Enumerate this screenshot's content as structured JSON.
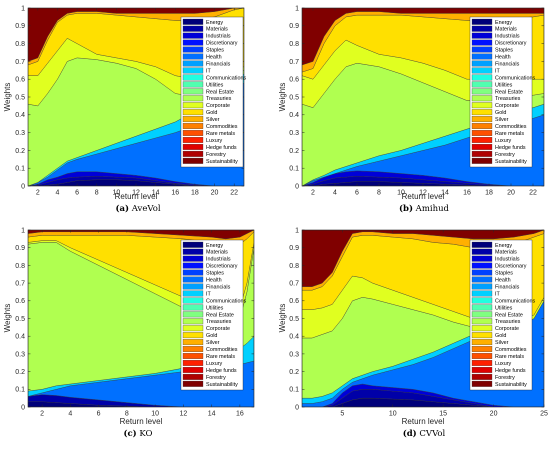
{
  "series_names": [
    "Energy",
    "Materials",
    "Industrials",
    "Discretionary",
    "Staples",
    "Health",
    "Financials",
    "IT",
    "Communications",
    "Utilities",
    "Real Estate",
    "Treasuries",
    "Corporate",
    "Gold",
    "Silver",
    "Commodities",
    "Rare metals",
    "Luxury",
    "Hedge funds",
    "Forestry",
    "Sustainability"
  ],
  "colors": [
    "#00007a",
    "#0000a8",
    "#0000d8",
    "#0010ff",
    "#0040ff",
    "#0070ff",
    "#00a0ff",
    "#00d0ff",
    "#20ffe0",
    "#50ffb0",
    "#80ff80",
    "#b0ff50",
    "#e0ff20",
    "#ffe000",
    "#ffb000",
    "#ff8000",
    "#ff5000",
    "#ff2000",
    "#e00000",
    "#b00000",
    "#800000"
  ],
  "chart_data": [
    {
      "type": "area",
      "caption_letter": "(a)",
      "caption_text": "AveVol",
      "xlabel": "Return level",
      "ylabel": "Weights",
      "xlim": [
        1,
        23
      ],
      "ylim": [
        0,
        1
      ],
      "xticks": [
        2,
        4,
        6,
        8,
        10,
        12,
        14,
        16,
        18,
        20,
        22
      ],
      "yticks": [
        0,
        0.1,
        0.2,
        0.3,
        0.4,
        0.5,
        0.6,
        0.7,
        0.8,
        0.9,
        1
      ],
      "x": [
        1,
        2,
        3,
        4,
        5,
        6,
        8,
        10,
        12,
        14,
        16,
        18,
        20,
        22,
        23
      ],
      "boundaries": {
        "Energy": [
          0,
          0,
          0.005,
          0.01,
          0.02,
          0.03,
          0.035,
          0.035,
          0.03,
          0.02,
          0.01,
          0,
          0,
          0,
          0
        ],
        "Materials": [
          0,
          0.005,
          0.02,
          0.035,
          0.045,
          0.05,
          0.055,
          0.05,
          0.045,
          0.03,
          0.015,
          0.005,
          0,
          0,
          0
        ],
        "Industrials": [
          0,
          0.01,
          0.035,
          0.05,
          0.07,
          0.08,
          0.08,
          0.07,
          0.06,
          0.045,
          0.025,
          0.01,
          0,
          0,
          0
        ],
        "Health": [
          0,
          0.02,
          0.05,
          0.09,
          0.13,
          0.15,
          0.18,
          0.21,
          0.24,
          0.27,
          0.3,
          0.34,
          0.42,
          0.52,
          0.58
        ],
        "IT": [
          0,
          0.02,
          0.06,
          0.1,
          0.14,
          0.16,
          0.2,
          0.24,
          0.28,
          0.32,
          0.36,
          0.42,
          0.5,
          0.6,
          0.63
        ],
        "Treasuries": [
          0.46,
          0.45,
          0.52,
          0.6,
          0.7,
          0.72,
          0.71,
          0.69,
          0.66,
          0.6,
          0.52,
          0.5,
          0.56,
          0.63,
          0.65
        ],
        "Corporate": [
          0.62,
          0.62,
          0.69,
          0.76,
          0.83,
          0.8,
          0.74,
          0.72,
          0.7,
          0.67,
          0.62,
          0.6,
          0.62,
          0.66,
          0.67
        ],
        "Gold": [
          0.68,
          0.7,
          0.82,
          0.92,
          0.96,
          0.97,
          0.97,
          0.96,
          0.95,
          0.94,
          0.93,
          0.93,
          0.95,
          0.99,
          1
        ],
        "Silver": [
          0.7,
          0.72,
          0.84,
          0.93,
          0.97,
          0.98,
          0.98,
          0.97,
          0.97,
          0.97,
          0.97,
          0.97,
          0.98,
          1,
          1
        ],
        "Sustainability": [
          1,
          1,
          1,
          1,
          1,
          1,
          1,
          1,
          1,
          1,
          1,
          1,
          1,
          1,
          1
        ]
      }
    },
    {
      "type": "area",
      "caption_letter": "(b)",
      "caption_text": "Amihud",
      "xlabel": "Return level",
      "ylabel": "Weights",
      "xlim": [
        1,
        23
      ],
      "ylim": [
        0,
        1
      ],
      "xticks": [
        2,
        4,
        6,
        8,
        10,
        12,
        14,
        16,
        18,
        20,
        22
      ],
      "yticks": [
        0,
        0.1,
        0.2,
        0.3,
        0.4,
        0.5,
        0.6,
        0.7,
        0.8,
        0.9,
        1
      ],
      "x": [
        1,
        2,
        3,
        4,
        5,
        6,
        8,
        10,
        12,
        14,
        16,
        18,
        20,
        22,
        23
      ],
      "boundaries": {
        "Energy": [
          0,
          0,
          0.01,
          0.015,
          0.02,
          0.025,
          0.025,
          0.02,
          0.015,
          0.01,
          0.005,
          0,
          0,
          0,
          0
        ],
        "Materials": [
          0,
          0.01,
          0.03,
          0.045,
          0.05,
          0.055,
          0.05,
          0.045,
          0.035,
          0.025,
          0.015,
          0.005,
          0,
          0,
          0
        ],
        "Industrials": [
          0,
          0.02,
          0.05,
          0.07,
          0.08,
          0.085,
          0.08,
          0.07,
          0.06,
          0.045,
          0.025,
          0.01,
          0,
          0,
          0
        ],
        "Health": [
          0,
          0.03,
          0.05,
          0.07,
          0.09,
          0.11,
          0.14,
          0.17,
          0.2,
          0.23,
          0.27,
          0.31,
          0.35,
          0.38,
          0.4
        ],
        "IT": [
          0,
          0.035,
          0.06,
          0.09,
          0.11,
          0.13,
          0.17,
          0.2,
          0.24,
          0.28,
          0.32,
          0.36,
          0.4,
          0.44,
          0.46
        ],
        "Treasuries": [
          0.46,
          0.44,
          0.52,
          0.6,
          0.67,
          0.69,
          0.67,
          0.63,
          0.58,
          0.53,
          0.48,
          0.48,
          0.5,
          0.51,
          0.52
        ],
        "Corporate": [
          0.62,
          0.6,
          0.68,
          0.76,
          0.82,
          0.79,
          0.74,
          0.72,
          0.69,
          0.65,
          0.6,
          0.6,
          0.6,
          0.6,
          0.6
        ],
        "Gold": [
          0.64,
          0.66,
          0.8,
          0.9,
          0.95,
          0.96,
          0.96,
          0.96,
          0.95,
          0.94,
          0.93,
          0.93,
          0.94,
          0.95,
          0.96
        ],
        "Silver": [
          0.68,
          0.7,
          0.84,
          0.93,
          0.97,
          0.98,
          0.98,
          0.97,
          0.97,
          0.97,
          0.97,
          0.97,
          0.97,
          0.97,
          0.97
        ],
        "Sustainability": [
          1,
          1,
          1,
          1,
          1,
          1,
          1,
          1,
          1,
          1,
          1,
          1,
          1,
          1,
          1
        ]
      }
    },
    {
      "type": "area",
      "caption_letter": "(c)",
      "caption_text": "KO",
      "xlabel": "Return level",
      "ylabel": "Weights",
      "xlim": [
        1,
        17
      ],
      "ylim": [
        0,
        1
      ],
      "xticks": [
        2,
        4,
        6,
        8,
        10,
        12,
        14,
        16
      ],
      "yticks": [
        0,
        0.1,
        0.2,
        0.3,
        0.4,
        0.5,
        0.6,
        0.7,
        0.8,
        0.9,
        1
      ],
      "x": [
        1,
        2,
        3,
        4,
        6,
        8,
        10,
        12,
        14,
        15,
        16,
        16.5,
        17
      ],
      "boundaries": {
        "Energy": [
          0.03,
          0.03,
          0.025,
          0.02,
          0.01,
          0.005,
          0,
          0,
          0,
          0,
          0,
          0,
          0
        ],
        "Materials": [
          0.06,
          0.07,
          0.065,
          0.055,
          0.04,
          0.025,
          0.01,
          0,
          0,
          0,
          0,
          0,
          0
        ],
        "Health": [
          0.06,
          0.08,
          0.1,
          0.12,
          0.14,
          0.16,
          0.18,
          0.2,
          0.22,
          0.23,
          0.24,
          0.25,
          0.26
        ],
        "IT": [
          0.09,
          0.1,
          0.12,
          0.13,
          0.15,
          0.17,
          0.19,
          0.22,
          0.26,
          0.29,
          0.33,
          0.36,
          0.4
        ],
        "Treasuries": [
          0.92,
          0.93,
          0.93,
          0.88,
          0.8,
          0.72,
          0.64,
          0.56,
          0.48,
          0.45,
          0.5,
          0.65,
          0.9
        ],
        "Corporate": [
          0.93,
          0.94,
          0.94,
          0.9,
          0.83,
          0.76,
          0.69,
          0.62,
          0.56,
          0.53,
          0.56,
          0.7,
          0.93
        ],
        "Gold": [
          0.96,
          0.97,
          0.97,
          0.97,
          0.97,
          0.97,
          0.96,
          0.95,
          0.93,
          0.92,
          0.92,
          0.95,
          0.99
        ],
        "Silver": [
          0.98,
          0.99,
          0.99,
          0.99,
          0.99,
          0.99,
          0.98,
          0.97,
          0.96,
          0.95,
          0.96,
          0.98,
          1
        ],
        "Sustainability": [
          1,
          1,
          1,
          1,
          1,
          1,
          1,
          1,
          1,
          1,
          1,
          1,
          1
        ]
      }
    },
    {
      "type": "area",
      "caption_letter": "(d)",
      "caption_text": "CVVol",
      "xlabel": "Return level",
      "ylabel": "Weights",
      "xlim": [
        1,
        25
      ],
      "ylim": [
        0,
        1
      ],
      "xticks": [
        5,
        10,
        15,
        20,
        25
      ],
      "yticks": [
        0,
        0.1,
        0.2,
        0.3,
        0.4,
        0.5,
        0.6,
        0.7,
        0.8,
        0.9,
        1
      ],
      "x": [
        1,
        2,
        3,
        4,
        5,
        6,
        7,
        8,
        10,
        12,
        14,
        16,
        18,
        20,
        22,
        24,
        25
      ],
      "boundaries": {
        "Energy": [
          0,
          0,
          0,
          0,
          0.02,
          0.04,
          0.05,
          0.05,
          0.045,
          0.04,
          0.03,
          0.02,
          0.01,
          0,
          0,
          0,
          0
        ],
        "Materials": [
          0,
          0,
          0,
          0.01,
          0.05,
          0.09,
          0.1,
          0.1,
          0.09,
          0.08,
          0.06,
          0.04,
          0.02,
          0,
          0,
          0,
          0
        ],
        "Industrials": [
          0,
          0,
          0,
          0.02,
          0.08,
          0.12,
          0.13,
          0.12,
          0.11,
          0.1,
          0.08,
          0.05,
          0.03,
          0.01,
          0,
          0,
          0
        ],
        "Health": [
          0.02,
          0.02,
          0.03,
          0.05,
          0.1,
          0.14,
          0.16,
          0.18,
          0.21,
          0.24,
          0.28,
          0.33,
          0.38,
          0.44,
          0.5,
          0.6,
          0.68
        ],
        "IT": [
          0.05,
          0.05,
          0.06,
          0.08,
          0.12,
          0.16,
          0.18,
          0.2,
          0.23,
          0.27,
          0.31,
          0.36,
          0.41,
          0.47,
          0.54,
          0.64,
          0.72
        ],
        "Treasuries": [
          0.39,
          0.39,
          0.41,
          0.43,
          0.5,
          0.6,
          0.62,
          0.61,
          0.58,
          0.55,
          0.52,
          0.48,
          0.45,
          0.43,
          0.44,
          0.5,
          0.6
        ],
        "Corporate": [
          0.55,
          0.55,
          0.56,
          0.58,
          0.66,
          0.74,
          0.73,
          0.7,
          0.66,
          0.62,
          0.58,
          0.54,
          0.5,
          0.47,
          0.47,
          0.52,
          0.62
        ],
        "Gold": [
          0.66,
          0.66,
          0.68,
          0.74,
          0.85,
          0.96,
          0.97,
          0.97,
          0.96,
          0.95,
          0.93,
          0.92,
          0.9,
          0.9,
          0.92,
          0.96,
          0.98
        ],
        "Silver": [
          0.68,
          0.68,
          0.7,
          0.76,
          0.88,
          0.98,
          0.99,
          0.99,
          0.98,
          0.98,
          0.97,
          0.96,
          0.95,
          0.95,
          0.96,
          0.98,
          1
        ],
        "Sustainability": [
          1,
          1,
          1,
          1,
          1,
          1,
          1,
          1,
          1,
          1,
          1,
          1,
          1,
          1,
          1,
          1,
          1
        ]
      }
    }
  ]
}
